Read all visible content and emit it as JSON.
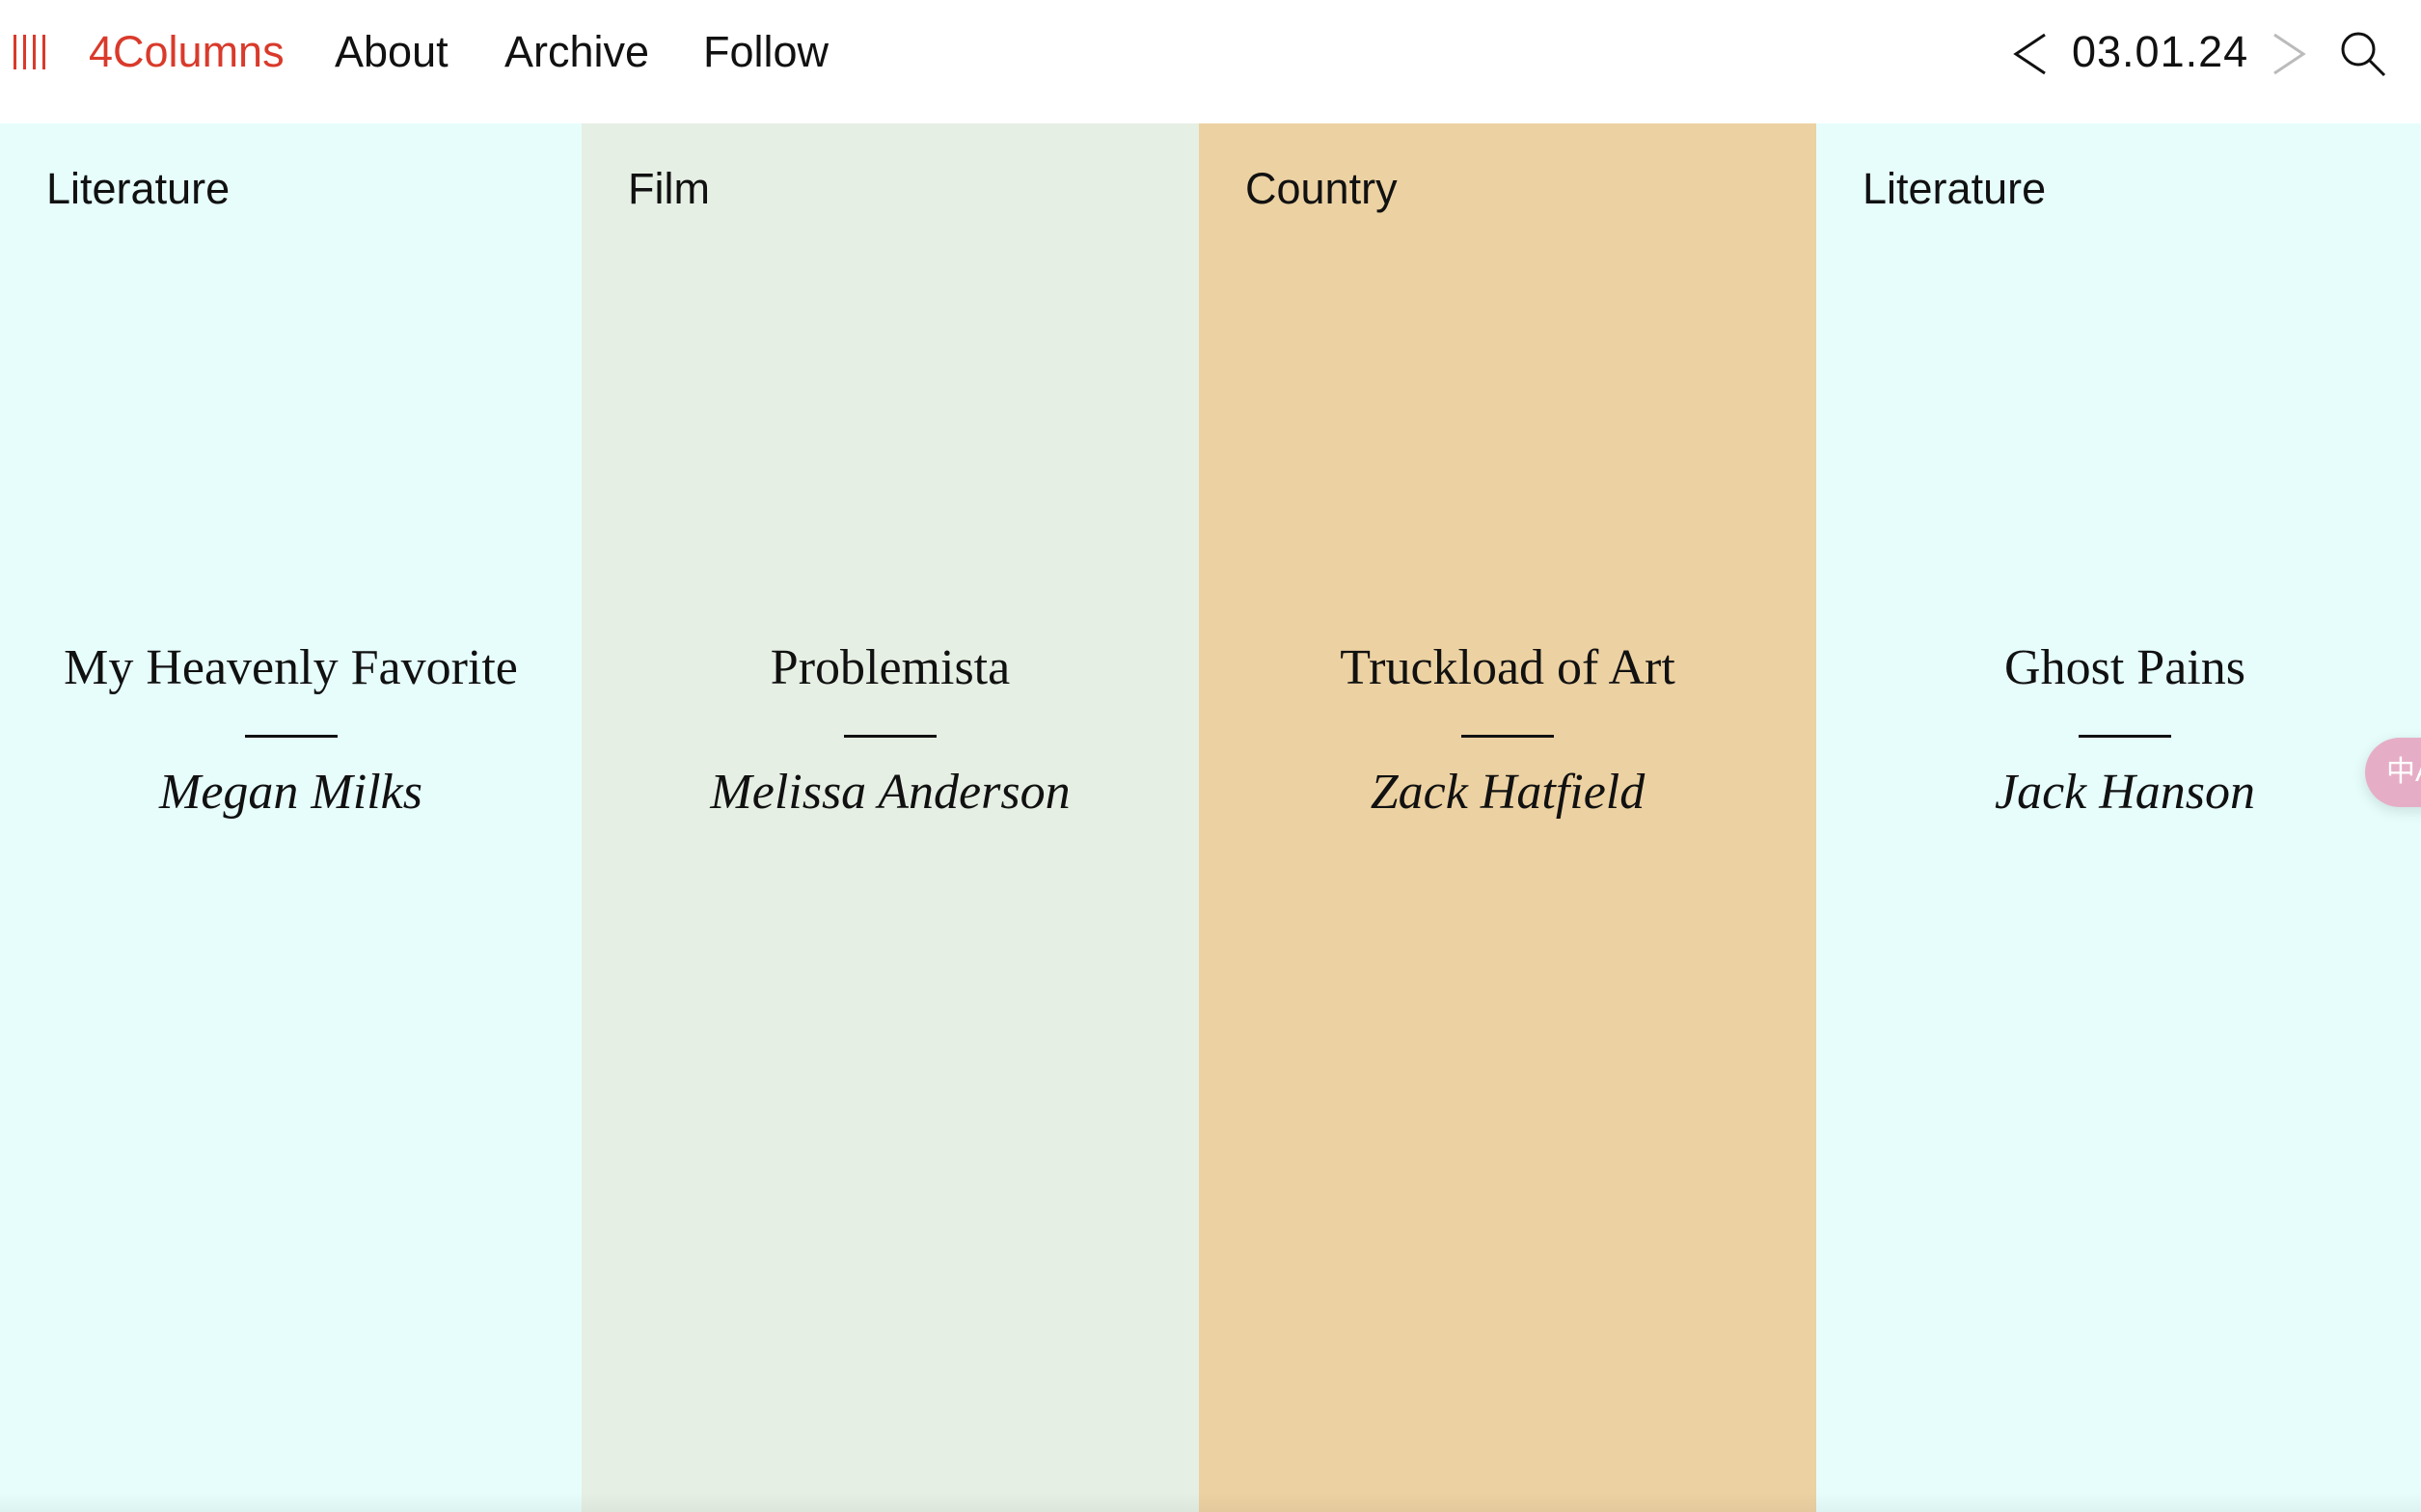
{
  "colors": {
    "accent": "#d93a2b",
    "literature": "#e6fdfb",
    "film": "#e5efe3",
    "country": "#ecd1a2",
    "next_disabled": "#bbbbbb"
  },
  "header": {
    "logo_icon": "four-bars-icon",
    "brand": "4Columns",
    "nav": [
      {
        "label": "About"
      },
      {
        "label": "Archive"
      },
      {
        "label": "Follow"
      }
    ],
    "date": "03.01.24",
    "prev_icon": "chevron-left-icon",
    "next_icon": "chevron-right-icon",
    "search_icon": "search-icon"
  },
  "columns": [
    {
      "category": "Literature",
      "title": "My Heavenly Favorite",
      "author": "Megan Milks"
    },
    {
      "category": "Film",
      "title": "Problemista",
      "author": "Melissa Anderson"
    },
    {
      "category": "Country",
      "title": "Truckload of Art",
      "author": "Zack Hatfield"
    },
    {
      "category": "Literature",
      "title": "Ghost Pains",
      "author": "Jack Hanson"
    }
  ],
  "translate_widget": {
    "icon": "translate-icon",
    "label": "中A"
  }
}
